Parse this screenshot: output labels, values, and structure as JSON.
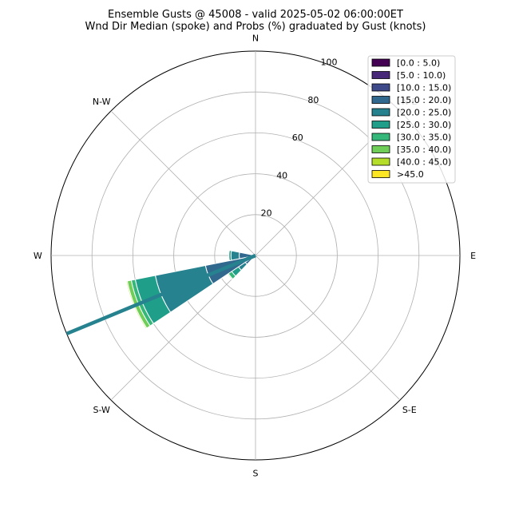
{
  "chart_data": {
    "type": "windrose",
    "title_line1": "Ensemble Gusts @ 45008 - valid 2025-05-02 06:00:00ET",
    "title_line2": "Wnd Dir Median (spoke) and Probs (%) graduated by Gust (knots)",
    "compass_labels": [
      {
        "deg": 0,
        "text": "N"
      },
      {
        "deg": 45,
        "text": "N-E"
      },
      {
        "deg": 90,
        "text": "E"
      },
      {
        "deg": 135,
        "text": "S-E"
      },
      {
        "deg": 180,
        "text": "S"
      },
      {
        "deg": 225,
        "text": "S-W"
      },
      {
        "deg": 270,
        "text": "W"
      },
      {
        "deg": 315,
        "text": "N-W"
      }
    ],
    "radial_ticks": [
      20,
      40,
      60,
      80,
      100
    ],
    "rlim": [
      0,
      100
    ],
    "bins": [
      {
        "label": "[0.0 : 5.0)",
        "color": "#440154"
      },
      {
        "label": "[5.0 : 10.0)",
        "color": "#482878"
      },
      {
        "label": "[10.0 : 15.0)",
        "color": "#3e4989"
      },
      {
        "label": "[15.0 : 20.0)",
        "color": "#31688e"
      },
      {
        "label": "[20.0 : 25.0)",
        "color": "#26828e"
      },
      {
        "label": "[25.0 : 30.0)",
        "color": "#1f9e89"
      },
      {
        "label": "[30.0 : 35.0)",
        "color": "#35b779"
      },
      {
        "label": "[35.0 : 40.0)",
        "color": "#6ece58"
      },
      {
        "label": "[40.0 : 45.0)",
        "color": "#b5de2b"
      },
      {
        "label": ">45.0",
        "color": "#fde725"
      }
    ],
    "wedges": [
      {
        "dir_deg": 235,
        "cumulative": [
          0,
          0,
          2,
          6,
          10,
          14,
          16,
          16.5,
          16.5,
          16.5
        ]
      },
      {
        "dir_deg": 247.5,
        "cumulative": [
          0,
          0,
          2,
          25,
          50,
          60,
          62,
          64,
          64.5,
          64.5
        ]
      },
      {
        "dir_deg": 270,
        "cumulative": [
          0,
          0,
          0,
          8,
          12,
          13,
          13,
          13,
          13,
          13
        ]
      }
    ],
    "median_spoke": {
      "dir_deg": 247.5,
      "length": 100,
      "color": "#26828e"
    }
  }
}
